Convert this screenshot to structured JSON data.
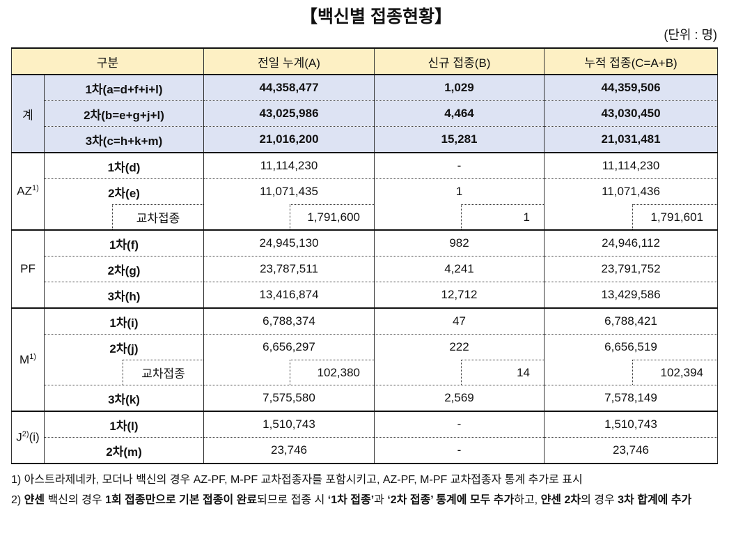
{
  "title": "【백신별 접종현황】",
  "unit": "(단위 : 명)",
  "table": {
    "headers": [
      "구분",
      "전일 누계(A)",
      "신규 접종(B)",
      "누적 접종(C=A+B)"
    ],
    "groups": [
      {
        "label": "계",
        "bold": true,
        "rows": [
          {
            "label": "1차(a=d+f+i+l)",
            "cells": [
              "44,358,477",
              "1,029",
              "44,359,506"
            ]
          },
          {
            "label": "2차(b=e+g+j+l)",
            "cells": [
              "43,025,986",
              "4,464",
              "43,030,450"
            ]
          },
          {
            "label": "3차(c=h+k+m)",
            "cells": [
              "21,016,200",
              "15,281",
              "21,031,481"
            ]
          }
        ]
      },
      {
        "label": "AZ",
        "sup": "1)",
        "rows": [
          {
            "label": "1차(d)",
            "cells": [
              "11,114,230",
              "-",
              "11,114,230"
            ]
          },
          {
            "label": "2차(e)",
            "cells": [
              "11,071,435",
              "1",
              "11,071,436"
            ]
          },
          {
            "label": "교차접종",
            "cross": true,
            "cells": [
              "1,791,600",
              "1",
              "1,791,601"
            ]
          }
        ]
      },
      {
        "label": "PF",
        "rows": [
          {
            "label": "1차(f)",
            "cells": [
              "24,945,130",
              "982",
              "24,946,112"
            ]
          },
          {
            "label": "2차(g)",
            "cells": [
              "23,787,511",
              "4,241",
              "23,791,752"
            ]
          },
          {
            "label": "3차(h)",
            "cells": [
              "13,416,874",
              "12,712",
              "13,429,586"
            ]
          }
        ]
      },
      {
        "label": "M",
        "sup": "1)",
        "rows": [
          {
            "label": "1차(i)",
            "cells": [
              "6,788,374",
              "47",
              "6,788,421"
            ]
          },
          {
            "label": "2차(j)",
            "cells": [
              "6,656,297",
              "222",
              "6,656,519"
            ]
          },
          {
            "label": "교차접종",
            "cross": true,
            "cells": [
              "102,380",
              "14",
              "102,394"
            ]
          },
          {
            "label": "3차(k)",
            "cells": [
              "7,575,580",
              "2,569",
              "7,578,149"
            ]
          }
        ]
      },
      {
        "label": "J",
        "sup": "2)",
        "suffix": "(i)",
        "rows": [
          {
            "label": "1차(l)",
            "cells": [
              "1,510,743",
              "-",
              "1,510,743"
            ]
          },
          {
            "label": "2차(m)",
            "cells": [
              "23,746",
              "-",
              "23,746"
            ]
          }
        ]
      }
    ]
  },
  "notes": [
    {
      "segments": [
        {
          "text": "1) 아스트라제네카, 모더나 백신의 경우 AZ-PF, M-PF 교차접종자를 포함시키고, AZ-PF, M-PF 교차접종자 통계 추가로 표시"
        }
      ]
    },
    {
      "segments": [
        {
          "text": "2) "
        },
        {
          "text": "얀센",
          "bold": true
        },
        {
          "text": " 백신의 경우 "
        },
        {
          "text": "1회 접종만으로 기본 접종이 완료",
          "bold": true
        },
        {
          "text": "되므로 접종 시 "
        },
        {
          "text": "‘1차 접종’",
          "bold": true
        },
        {
          "text": "과 "
        },
        {
          "text": "‘2차 접종’ 통계에 모두 추가",
          "bold": true
        },
        {
          "text": "하고, "
        },
        {
          "text": "얀센 2차",
          "bold": true
        },
        {
          "text": "의 경우 "
        },
        {
          "text": "3차 합계에 추가",
          "bold": true
        }
      ]
    }
  ]
}
